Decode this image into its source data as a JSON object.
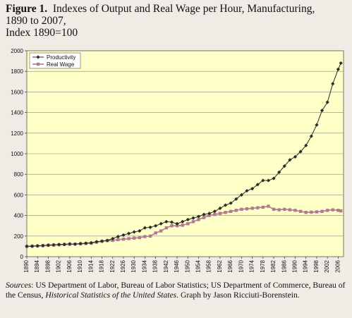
{
  "figure": {
    "number": "Figure 1.",
    "title_line1": "Indexes of Output and Real Wage per Hour, Manufacturing,",
    "title_line2": "1890 to 2007,",
    "title_line3": "Index 1890=100"
  },
  "source": {
    "label": "Sources",
    "text1": ": US Department of Labor, Bureau of Labor Statistics; US Department of Commerce, Bureau of the Census, ",
    "book": "Historical Statistics of the United States",
    "text2": ". Graph by Jason Ricciuti-Borenstein."
  },
  "colors": {
    "plot_bg": "#ffffc8",
    "productivity": "#2b2b2b",
    "real_wage": "#b27a92",
    "grid": "#888888"
  },
  "chart_data": {
    "type": "line",
    "title": "Indexes of Output and Real Wage per Hour, Manufacturing, 1890 to 2007, Index 1890=100",
    "xlabel": "",
    "ylabel": "",
    "xlim": [
      1890,
      2008
    ],
    "ylim": [
      0,
      2000
    ],
    "y_ticks": [
      0,
      200,
      400,
      600,
      800,
      1000,
      1200,
      1400,
      1600,
      1800,
      2000
    ],
    "x_ticks": [
      1890,
      1894,
      1898,
      1902,
      1906,
      1910,
      1914,
      1918,
      1922,
      1926,
      1930,
      1934,
      1938,
      1942,
      1946,
      1950,
      1954,
      1958,
      1962,
      1966,
      1970,
      1974,
      1978,
      1982,
      1986,
      1990,
      1994,
      1998,
      2002,
      2006
    ],
    "grid": "horizontal",
    "legend_position": "top-left",
    "series": [
      {
        "name": "Productivity",
        "marker": "diamond",
        "x": [
          1890,
          1892,
          1894,
          1896,
          1898,
          1900,
          1902,
          1904,
          1906,
          1908,
          1910,
          1912,
          1914,
          1916,
          1918,
          1920,
          1922,
          1924,
          1926,
          1928,
          1930,
          1932,
          1934,
          1936,
          1938,
          1940,
          1942,
          1944,
          1946,
          1948,
          1950,
          1952,
          1954,
          1956,
          1958,
          1960,
          1962,
          1964,
          1966,
          1968,
          1970,
          1972,
          1974,
          1976,
          1978,
          1980,
          1982,
          1984,
          1986,
          1988,
          1990,
          1992,
          1994,
          1996,
          1998,
          2000,
          2002,
          2004,
          2006,
          2007
        ],
        "values": [
          100,
          102,
          105,
          108,
          112,
          115,
          118,
          120,
          124,
          122,
          127,
          130,
          135,
          145,
          150,
          158,
          175,
          195,
          210,
          225,
          240,
          250,
          280,
          285,
          300,
          320,
          340,
          335,
          320,
          340,
          360,
          375,
          390,
          410,
          420,
          440,
          470,
          500,
          520,
          560,
          600,
          640,
          660,
          700,
          740,
          740,
          760,
          820,
          880,
          940,
          970,
          1020,
          1080,
          1170,
          1280,
          1420,
          1500,
          1680,
          1820,
          1880
        ]
      },
      {
        "name": "Real Wage",
        "marker": "square",
        "x": [
          1890,
          1892,
          1894,
          1896,
          1898,
          1900,
          1902,
          1904,
          1906,
          1908,
          1910,
          1912,
          1914,
          1916,
          1918,
          1920,
          1922,
          1924,
          1926,
          1928,
          1930,
          1932,
          1934,
          1936,
          1938,
          1940,
          1942,
          1944,
          1946,
          1948,
          1950,
          1952,
          1954,
          1956,
          1958,
          1960,
          1962,
          1964,
          1966,
          1968,
          1970,
          1972,
          1974,
          1976,
          1978,
          1980,
          1982,
          1984,
          1986,
          1988,
          1990,
          1992,
          1994,
          1996,
          1998,
          2000,
          2002,
          2004,
          2006,
          2007
        ],
        "values": [
          100,
          102,
          104,
          106,
          110,
          112,
          115,
          118,
          120,
          122,
          125,
          128,
          130,
          140,
          150,
          155,
          158,
          165,
          170,
          175,
          180,
          185,
          195,
          200,
          230,
          250,
          280,
          300,
          300,
          305,
          320,
          340,
          360,
          380,
          400,
          410,
          420,
          430,
          440,
          450,
          460,
          465,
          470,
          475,
          480,
          490,
          460,
          455,
          460,
          455,
          450,
          440,
          430,
          432,
          435,
          440,
          450,
          455,
          450,
          445
        ]
      }
    ]
  }
}
